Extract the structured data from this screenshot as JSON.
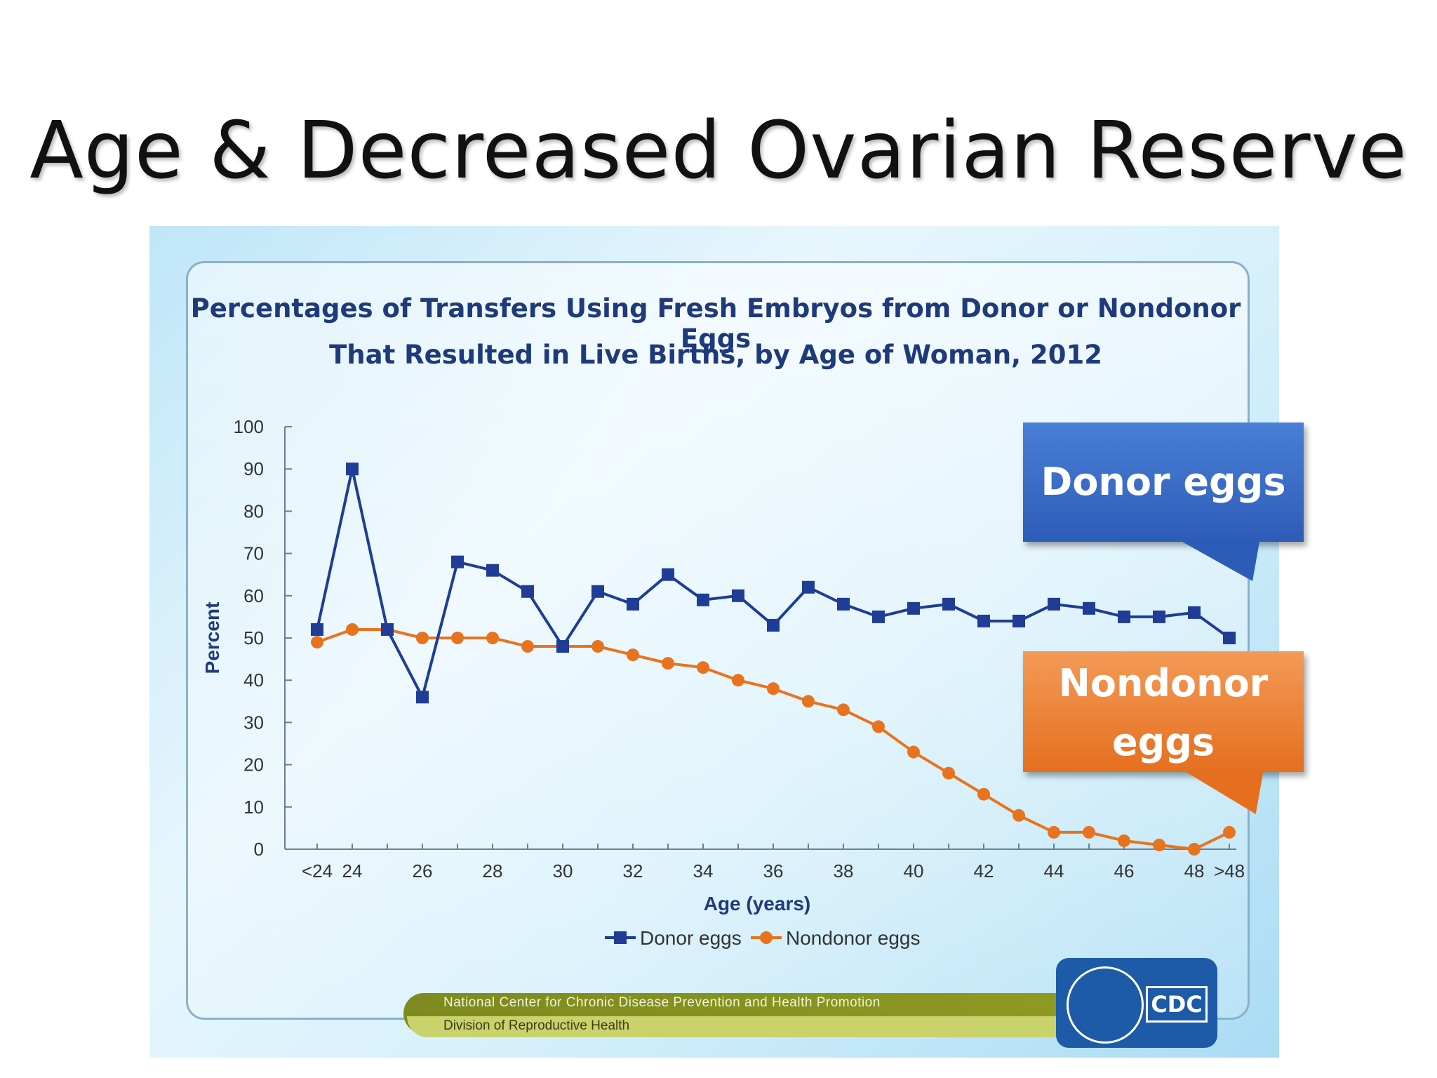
{
  "slide": {
    "title": "Age & Decreased Ovarian Reserve"
  },
  "chart_data": {
    "type": "line",
    "title": "Percentages of Transfers Using Fresh Embryos from Donor or Nondonor Eggs",
    "subtitle": "That Resulted in Live Births, by Age of Woman, 2012",
    "xlabel": "Age (years)",
    "ylabel": "Percent",
    "ylim": [
      0,
      100
    ],
    "yticks": [
      0,
      10,
      20,
      30,
      40,
      50,
      60,
      70,
      80,
      90,
      100
    ],
    "categories": [
      "<24",
      "24",
      "25",
      "26",
      "27",
      "28",
      "29",
      "30",
      "31",
      "32",
      "33",
      "34",
      "35",
      "36",
      "37",
      "38",
      "39",
      "40",
      "41",
      "42",
      "43",
      "44",
      "45",
      "46",
      "47",
      "48",
      ">48"
    ],
    "xtick_labels": [
      "<24",
      "24",
      "",
      "26",
      "",
      "28",
      "",
      "30",
      "",
      "32",
      "",
      "34",
      "",
      "36",
      "",
      "38",
      "",
      "40",
      "",
      "42",
      "",
      "44",
      "",
      "46",
      "",
      "48",
      ">48"
    ],
    "series": [
      {
        "name": "Donor eggs",
        "color": "#1f3c96",
        "marker": "square",
        "values": [
          52,
          90,
          52,
          36,
          68,
          66,
          61,
          48,
          61,
          58,
          65,
          59,
          60,
          53,
          62,
          58,
          55,
          57,
          58,
          54,
          54,
          58,
          57,
          55,
          55,
          56,
          50
        ]
      },
      {
        "name": "Nondonor eggs",
        "color": "#e8731f",
        "marker": "circle",
        "values": [
          49,
          52,
          52,
          50,
          50,
          50,
          48,
          48,
          48,
          46,
          44,
          43,
          40,
          38,
          35,
          33,
          29,
          23,
          18,
          13,
          8,
          4,
          4,
          2,
          1,
          0,
          4
        ]
      }
    ],
    "legend": [
      "Donor eggs",
      "Nondonor eggs"
    ],
    "legend_position": "bottom"
  },
  "callouts": {
    "donor": "Donor eggs",
    "nondonor_line1": "Nondonor",
    "nondonor_line2": "eggs"
  },
  "footer": {
    "line1": "National Center for Chronic Disease Prevention and Health Promotion",
    "line2": "Division of Reproductive Health"
  },
  "logo": {
    "text": "CDC"
  }
}
